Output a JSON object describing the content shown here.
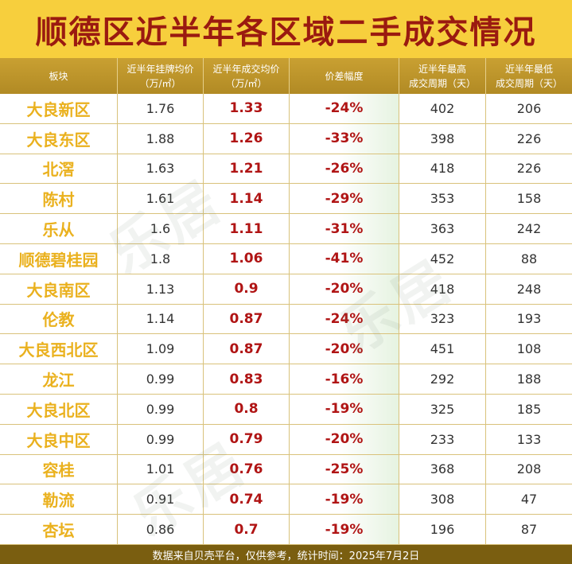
{
  "title": "顺德区近半年各区域二手成交情况",
  "headers": {
    "plate": [
      "板块"
    ],
    "listing": [
      "近半年挂牌均价",
      "（万/㎡）"
    ],
    "deal": [
      "近半年成交均价",
      "（万/㎡）"
    ],
    "diff": [
      "价差幅度"
    ],
    "max_cycle": [
      "近半年最高",
      "成交周期（天）"
    ],
    "min_cycle": [
      "近半年最低",
      "成交周期（天）"
    ]
  },
  "rows": [
    {
      "plate": "大良新区",
      "listing": "1.76",
      "deal": "1.33",
      "diff": "-24%",
      "max": "402",
      "min": "206"
    },
    {
      "plate": "大良东区",
      "listing": "1.88",
      "deal": "1.26",
      "diff": "-33%",
      "max": "398",
      "min": "226"
    },
    {
      "plate": "北滘",
      "listing": "1.63",
      "deal": "1.21",
      "diff": "-26%",
      "max": "418",
      "min": "226"
    },
    {
      "plate": "陈村",
      "listing": "1.61",
      "deal": "1.14",
      "diff": "-29%",
      "max": "353",
      "min": "158"
    },
    {
      "plate": "乐从",
      "listing": "1.6",
      "deal": "1.11",
      "diff": "-31%",
      "max": "363",
      "min": "242"
    },
    {
      "plate": "顺德碧桂园",
      "listing": "1.8",
      "deal": "1.06",
      "diff": "-41%",
      "max": "452",
      "min": "88"
    },
    {
      "plate": "大良南区",
      "listing": "1.13",
      "deal": "0.9",
      "diff": "-20%",
      "max": "418",
      "min": "248"
    },
    {
      "plate": "伦教",
      "listing": "1.14",
      "deal": "0.87",
      "diff": "-24%",
      "max": "323",
      "min": "193"
    },
    {
      "plate": "大良西北区",
      "listing": "1.09",
      "deal": "0.87",
      "diff": "-20%",
      "max": "451",
      "min": "108"
    },
    {
      "plate": "龙江",
      "listing": "0.99",
      "deal": "0.83",
      "diff": "-16%",
      "max": "292",
      "min": "188"
    },
    {
      "plate": "大良北区",
      "listing": "0.99",
      "deal": "0.8",
      "diff": "-19%",
      "max": "325",
      "min": "185"
    },
    {
      "plate": "大良中区",
      "listing": "0.99",
      "deal": "0.79",
      "diff": "-20%",
      "max": "233",
      "min": "133"
    },
    {
      "plate": "容桂",
      "listing": "1.01",
      "deal": "0.76",
      "diff": "-25%",
      "max": "368",
      "min": "208"
    },
    {
      "plate": "勒流",
      "listing": "0.91",
      "deal": "0.74",
      "diff": "-19%",
      "max": "308",
      "min": "47"
    },
    {
      "plate": "杏坛",
      "listing": "0.86",
      "deal": "0.7",
      "diff": "-19%",
      "max": "196",
      "min": "87"
    }
  ],
  "footer": "数据来自贝壳平台，仅供参考，统计时间：2025年7月2日",
  "colors": {
    "title_bg": "#f7cf3d",
    "title_text": "#9a1a10",
    "header_bg": "#b18a24",
    "plate_text": "#eab11e",
    "highlight_text": "#b01414",
    "footer_bg": "#7a5e10"
  },
  "chart_data": {
    "type": "table",
    "title": "顺德区近半年各区域二手成交情况",
    "columns": [
      "板块",
      "近半年挂牌均价（万/㎡）",
      "近半年成交均价（万/㎡）",
      "价差幅度",
      "近半年最高成交周期（天）",
      "近半年最低成交周期（天）"
    ],
    "rows": [
      [
        "大良新区",
        1.76,
        1.33,
        "-24%",
        402,
        206
      ],
      [
        "大良东区",
        1.88,
        1.26,
        "-33%",
        398,
        226
      ],
      [
        "北滘",
        1.63,
        1.21,
        "-26%",
        418,
        226
      ],
      [
        "陈村",
        1.61,
        1.14,
        "-29%",
        353,
        158
      ],
      [
        "乐从",
        1.6,
        1.11,
        "-31%",
        363,
        242
      ],
      [
        "顺德碧桂园",
        1.8,
        1.06,
        "-41%",
        452,
        88
      ],
      [
        "大良南区",
        1.13,
        0.9,
        "-20%",
        418,
        248
      ],
      [
        "伦教",
        1.14,
        0.87,
        "-24%",
        323,
        193
      ],
      [
        "大良西北区",
        1.09,
        0.87,
        "-20%",
        451,
        108
      ],
      [
        "龙江",
        0.99,
        0.83,
        "-16%",
        292,
        188
      ],
      [
        "大良北区",
        0.99,
        0.8,
        "-19%",
        325,
        185
      ],
      [
        "大良中区",
        0.99,
        0.79,
        "-20%",
        233,
        133
      ],
      [
        "容桂",
        1.01,
        0.76,
        "-25%",
        368,
        208
      ],
      [
        "勒流",
        0.91,
        0.74,
        "-19%",
        308,
        47
      ],
      [
        "杏坛",
        0.86,
        0.7,
        "-19%",
        196,
        87
      ]
    ]
  }
}
